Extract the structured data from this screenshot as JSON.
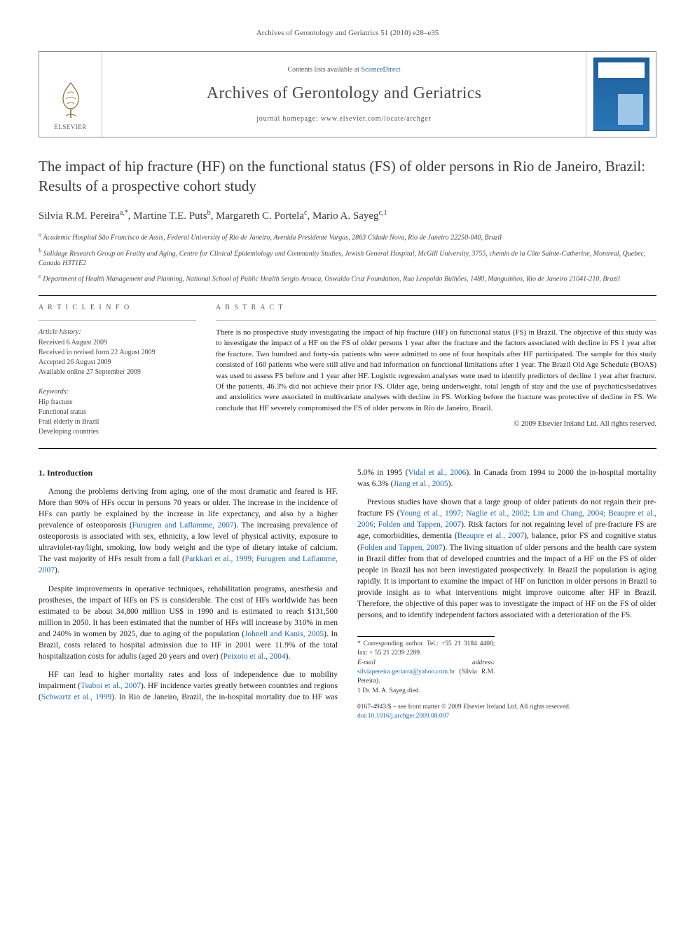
{
  "running_head": "Archives of Gerontology and Geriatrics 51 (2010) e28–e35",
  "masthead": {
    "publisher_label": "ELSEVIER",
    "contents_prefix": "Contents lists available at ",
    "contents_link": "ScienceDirect",
    "journal_name": "Archives of Gerontology and Geriatrics",
    "homepage_prefix": "journal homepage: ",
    "homepage_url": "www.elsevier.com/locate/archger"
  },
  "title": "The impact of hip fracture (HF) on the functional status (FS) of older persons in Rio de Janeiro, Brazil: Results of a prospective cohort study",
  "authors_html": "Silvia R.M. Pereira|a,*|, Martine T.E. Puts|b|, Margareth C. Portela|c|, Mario A. Sayeg|c,1|",
  "affiliations": [
    "a Academic Hospital São Francisco de Assis, Federal University of Rio de Janeiro, Avenida Presidente Vargas, 2863 Cidade Nova, Rio de Janeiro 22250-040, Brazil",
    "b Solidage Research Group on Frailty and Aging, Centre for Clinical Epidemiology and Community Studies, Jewish General Hospital, McGill University, 3755, chemin de la Côte Sainte-Catherine, Montreal, Quebec, Canada H3T1E2",
    "c Department of Health Management and Planning, National School of Public Health Sergio Arouca, Oswaldo Cruz Foundation, Rua Leopoldo Bulhões, 1480, Manguinhos, Rio de Janeiro 21041-210, Brazil"
  ],
  "article_info": {
    "heading": "A R T I C L E  I N F O",
    "history_heading": "Article history:",
    "history": [
      "Received 6 August 2009",
      "Received in revised form 22 August 2009",
      "Accepted 26 August 2009",
      "Available online 27 September 2009"
    ],
    "keywords_heading": "Keywords:",
    "keywords": [
      "Hip fracture",
      "Functional status",
      "Frail elderly in Brazil",
      "Developing countries"
    ]
  },
  "abstract": {
    "heading": "A B S T R A C T",
    "text": "There is no prospective study investigating the impact of hip fracture (HF) on functional status (FS) in Brazil. The objective of this study was to investigate the impact of a HF on the FS of older persons 1 year after the fracture and the factors associated with decline in FS 1 year after the fracture. Two hundred and forty-six patients who were admitted to one of four hospitals after HF participated. The sample for this study consisted of 160 patients who were still alive and had information on functional limitations after 1 year. The Brazil Old Age Schedule (BOAS) was used to assess FS before and 1 year after HF. Logistic regression analyses were used to identify predictors of decline 1 year after fracture. Of the patients, 46.3% did not achieve their prior FS. Older age, being underweight, total length of stay and the use of psychotics/sedatives and anxiolitics were associated in multivariate analyses with decline in FS. Working before the fracture was protective of decline in FS. We conclude that HF severely compromised the FS of older persons in Rio de Janeiro, Brazil.",
    "copyright": "© 2009 Elsevier Ireland Ltd. All rights reserved."
  },
  "section_heading": "1. Introduction",
  "body_paragraphs": [
    "Among the problems deriving from aging, one of the most dramatic and feared is HF. More than 90% of HFs occur in persons 70 years or older. The increase in the incidence of HFs can partly be explained by the increase in life expectancy, and also by a higher prevalence of osteoporosis (Furugren and Laflamme, 2007). The increasing prevalence of osteoporosis is associated with sex, ethnicity, a low level of physical activity, exposure to ultraviolet-ray/light, smoking, low body weight and the type of dietary intake of calcium. The vast majority of HFs result from a fall (Parkkari et al., 1999; Furugren and Laflamme, 2007).",
    "Despite improvements in operative techniques, rehabilitation programs, anesthesia and prostheses, the impact of HFs on FS is considerable. The cost of HFs worldwide has been estimated to be about 34,800 million US$ in 1990 and is estimated to reach $131,500 million in 2050. It has been estimated that the number of HFs will increase by 310% in men and 240% in women by 2025, due to aging of the population (Johnell and Kanis, 2005). In Brazil, costs related to hospital admission due to HF in 2001 were 11.9% of the total hospitalization costs for adults (aged 20 years and over) (Peixoto et al., 2004).",
    "HF can lead to higher mortality rates and loss of independence due to mobility impairment (Tsuboi et al., 2007). HF incidence varies greatly between countries and regions (Schwartz et al., 1999). In Rio de Janeiro, Brazil, the in-hospital mortality due to HF was 5.0% in 1995 (Vidal et al., 2006). In Canada from 1994 to 2000 the in-hospital mortality was 6.3% (Jiang et al., 2005).",
    "Previous studies have shown that a large group of older patients do not regain their pre-fracture FS (Young et al., 1997; Naglie et al., 2002; Lin and Chang, 2004; Beaupre et al., 2006; Folden and Tappen, 2007). Risk factors for not regaining level of pre-fracture FS are age, comorbidities, dementia (Beaupre et al., 2007), balance, prior FS and cognitive status (Folden and Tappen, 2007). The living situation of older persons and the health care system in Brazil differ from that of developed countries and the impact of a HF on the FS of older people in Brazil has not been investigated prospectively. In Brazil the population is aging rapidly. It is important to examine the impact of HF on function in older persons in Brazil to provide insight as to what interventions might improve outcome after HF in Brazil. Therefore, the objective of this paper was to investigate the impact of HF on the FS of older persons, and to identify independent factors associated with a deterioration of the FS."
  ],
  "footnotes": {
    "corresponding": "* Corresponding author. Tel.: +55 21 3184 4400; fax: + 55 21 2239 2289.",
    "email_label": "E-mail address: ",
    "email": "silviapereira.geriatra@yahoo.com.br",
    "email_suffix": " (Silvia R.M. Pereira).",
    "note1": "1 Dr. M. A. Sayeg died."
  },
  "footer": {
    "line1": "0167-4943/$ – see front matter © 2009 Elsevier Ireland Ltd. All rights reserved.",
    "line2": "doi:10.1016/j.archger.2009.08.007"
  },
  "colors": {
    "link": "#1b67b3",
    "text": "#333333",
    "cover_bg": "#2a76b8"
  }
}
